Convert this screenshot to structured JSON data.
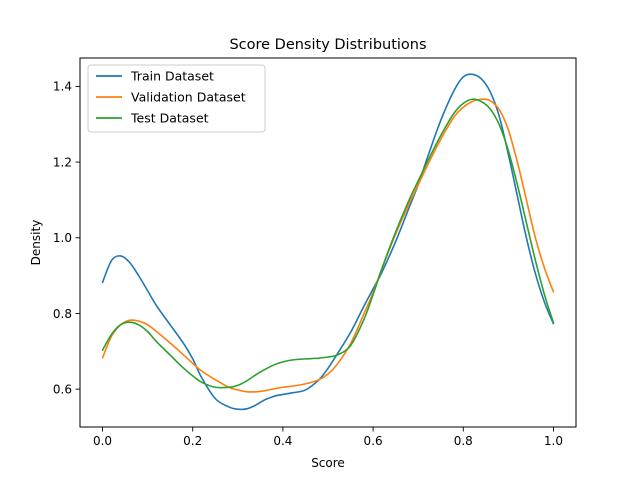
{
  "chart_data": {
    "type": "line",
    "title": "Score Density Distributions",
    "xlabel": "Score",
    "ylabel": "Density",
    "xlim": [
      -0.05,
      1.05
    ],
    "ylim": [
      0.5,
      1.475
    ],
    "xticks": [
      0.0,
      0.2,
      0.4,
      0.6,
      0.8,
      1.0
    ],
    "xtick_labels": [
      "0.0",
      "0.2",
      "0.4",
      "0.6",
      "0.8",
      "1.0"
    ],
    "yticks": [
      0.6,
      0.8,
      1.0,
      1.2,
      1.4
    ],
    "ytick_labels": [
      "0.6",
      "0.8",
      "1.0",
      "1.2",
      "1.4"
    ],
    "grid": false,
    "legend_position": "top-left",
    "series": [
      {
        "name": "Train Dataset",
        "color": "#1f77b4",
        "x": [
          0.0,
          0.02,
          0.04,
          0.06,
          0.08,
          0.1,
          0.12,
          0.15,
          0.18,
          0.2,
          0.22,
          0.25,
          0.28,
          0.3,
          0.32,
          0.34,
          0.36,
          0.38,
          0.4,
          0.42,
          0.45,
          0.48,
          0.5,
          0.52,
          0.55,
          0.58,
          0.6,
          0.62,
          0.65,
          0.68,
          0.7,
          0.72,
          0.75,
          0.78,
          0.8,
          0.82,
          0.84,
          0.86,
          0.88,
          0.9,
          0.92,
          0.94,
          0.96,
          0.98,
          1.0
        ],
        "y": [
          0.882,
          0.94,
          0.952,
          0.935,
          0.9,
          0.86,
          0.82,
          0.77,
          0.72,
          0.68,
          0.63,
          0.575,
          0.553,
          0.547,
          0.548,
          0.558,
          0.572,
          0.581,
          0.586,
          0.59,
          0.598,
          0.625,
          0.655,
          0.692,
          0.75,
          0.82,
          0.865,
          0.91,
          0.99,
          1.08,
          1.14,
          1.21,
          1.31,
          1.39,
          1.425,
          1.432,
          1.42,
          1.385,
          1.32,
          1.22,
          1.11,
          1.0,
          0.905,
          0.83,
          0.773
        ]
      },
      {
        "name": "Validation Dataset",
        "color": "#ff7f0e",
        "x": [
          0.0,
          0.02,
          0.04,
          0.06,
          0.08,
          0.1,
          0.12,
          0.15,
          0.18,
          0.2,
          0.22,
          0.25,
          0.28,
          0.3,
          0.32,
          0.34,
          0.36,
          0.38,
          0.4,
          0.42,
          0.45,
          0.48,
          0.5,
          0.52,
          0.55,
          0.58,
          0.6,
          0.62,
          0.65,
          0.68,
          0.7,
          0.72,
          0.75,
          0.78,
          0.8,
          0.82,
          0.84,
          0.86,
          0.88,
          0.9,
          0.92,
          0.94,
          0.96,
          0.98,
          1.0
        ],
        "y": [
          0.683,
          0.74,
          0.77,
          0.782,
          0.78,
          0.77,
          0.752,
          0.722,
          0.69,
          0.668,
          0.648,
          0.625,
          0.605,
          0.598,
          0.593,
          0.593,
          0.596,
          0.601,
          0.605,
          0.608,
          0.614,
          0.625,
          0.64,
          0.665,
          0.72,
          0.8,
          0.855,
          0.92,
          1.01,
          1.09,
          1.14,
          1.19,
          1.26,
          1.32,
          1.345,
          1.36,
          1.366,
          1.362,
          1.338,
          1.285,
          1.2,
          1.1,
          1.0,
          0.92,
          0.857
        ]
      },
      {
        "name": "Test Dataset",
        "color": "#2ca02c",
        "x": [
          0.0,
          0.02,
          0.04,
          0.06,
          0.08,
          0.1,
          0.12,
          0.15,
          0.18,
          0.2,
          0.22,
          0.25,
          0.28,
          0.3,
          0.32,
          0.34,
          0.36,
          0.38,
          0.4,
          0.42,
          0.45,
          0.48,
          0.5,
          0.52,
          0.55,
          0.58,
          0.6,
          0.62,
          0.65,
          0.68,
          0.7,
          0.72,
          0.75,
          0.78,
          0.8,
          0.82,
          0.84,
          0.86,
          0.88,
          0.9,
          0.92,
          0.94,
          0.96,
          0.98,
          1.0
        ],
        "y": [
          0.703,
          0.745,
          0.77,
          0.777,
          0.77,
          0.752,
          0.725,
          0.69,
          0.655,
          0.635,
          0.618,
          0.605,
          0.605,
          0.61,
          0.622,
          0.638,
          0.652,
          0.664,
          0.672,
          0.677,
          0.68,
          0.682,
          0.685,
          0.69,
          0.715,
          0.785,
          0.85,
          0.92,
          1.015,
          1.1,
          1.15,
          1.2,
          1.27,
          1.33,
          1.355,
          1.366,
          1.36,
          1.34,
          1.298,
          1.23,
          1.14,
          1.04,
          0.94,
          0.85,
          0.775
        ]
      }
    ]
  }
}
